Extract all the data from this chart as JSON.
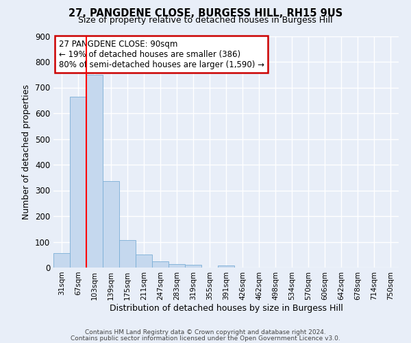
{
  "title": "27, PANGDENE CLOSE, BURGESS HILL, RH15 9US",
  "subtitle": "Size of property relative to detached houses in Burgess Hill",
  "xlabel": "Distribution of detached houses by size in Burgess Hill",
  "ylabel": "Number of detached properties",
  "bin_labels": [
    "31sqm",
    "67sqm",
    "103sqm",
    "139sqm",
    "175sqm",
    "211sqm",
    "247sqm",
    "283sqm",
    "319sqm",
    "355sqm",
    "391sqm",
    "426sqm",
    "462sqm",
    "498sqm",
    "534sqm",
    "570sqm",
    "606sqm",
    "642sqm",
    "678sqm",
    "714sqm",
    "750sqm"
  ],
  "bar_values": [
    55,
    665,
    750,
    335,
    108,
    52,
    25,
    14,
    10,
    0,
    8,
    0,
    0,
    0,
    0,
    0,
    0,
    0,
    0,
    0,
    0
  ],
  "bar_color": "#c5d8ee",
  "bar_edge_color": "#7aaed6",
  "ylim": [
    0,
    900
  ],
  "yticks": [
    0,
    100,
    200,
    300,
    400,
    500,
    600,
    700,
    800,
    900
  ],
  "annotation_title": "27 PANGDENE CLOSE: 90sqm",
  "annotation_line1": "← 19% of detached houses are smaller (386)",
  "annotation_line2": "80% of semi-detached houses are larger (1,590) →",
  "footer_line1": "Contains HM Land Registry data © Crown copyright and database right 2024.",
  "footer_line2": "Contains public sector information licensed under the Open Government Licence v3.0.",
  "background_color": "#e8eef8",
  "grid_color": "#ffffff",
  "box_color": "#cc0000",
  "property_line_x": 1.5
}
